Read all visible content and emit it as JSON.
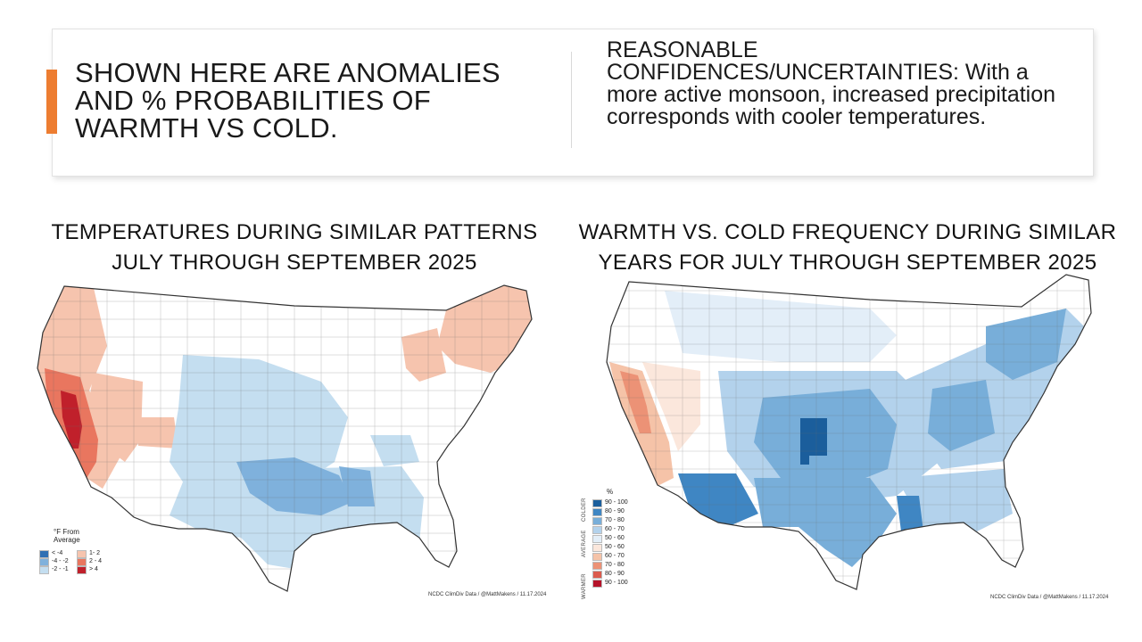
{
  "slide": {
    "headline": "SHOWN HERE ARE ANOMALIES AND % PROBABILITIES OF WARMTH VS COLD.",
    "confidence_label": "REASONABLE CONFIDENCES/UNCERTAINTIES:",
    "confidence_text": " With a more active monsoon, increased precipitation corresponds with cooler temperatures.",
    "accent_color": "#ed7d31"
  },
  "map_left": {
    "title_line1": "TEMPERATURES DURING SIMILAR PATTERNS",
    "title_line2": "JULY THROUGH SEPTEMBER 2025",
    "legend_title": "°F From Average",
    "legend_items": [
      {
        "label": "< -4",
        "color": "#2f6fb3"
      },
      {
        "label": "-4 - -2",
        "color": "#7fb1dc"
      },
      {
        "label": "-2 - -1",
        "color": "#c4def0"
      },
      {
        "label": "1- 2",
        "color": "#f6c4ae"
      },
      {
        "label": "2 - 4",
        "color": "#e9765f"
      },
      {
        "label": "> 4",
        "color": "#c0202b"
      }
    ],
    "credit": "NCDC ClimDiv Data / @MattMakens / 11.17.2024"
  },
  "map_right": {
    "title_line1": "WARMTH VS. COLD FREQUENCY DURING SIMILAR",
    "title_line2": "YEARS FOR JULY THROUGH SEPTEMBER 2025",
    "legend_title": "%",
    "legend_items": [
      {
        "label": "90 - 100",
        "color": "#1b5e9c"
      },
      {
        "label": "80 - 90",
        "color": "#3f86c3"
      },
      {
        "label": "70 - 80",
        "color": "#78aed9"
      },
      {
        "label": "60 - 70",
        "color": "#b3d2ec"
      },
      {
        "label": "50 - 60",
        "color": "#e3eef8"
      },
      {
        "label": "50 - 60",
        "color": "#fbe7dc"
      },
      {
        "label": "60 - 70",
        "color": "#f5c3a8"
      },
      {
        "label": "70 - 80",
        "color": "#ec9276"
      },
      {
        "label": "80 - 90",
        "color": "#db5b4d"
      },
      {
        "label": "90 - 100",
        "color": "#b5132a"
      }
    ],
    "side_labels": [
      "COLDER",
      "AVERAGE",
      "WARMER"
    ],
    "credit": "NCDC ClimDiv Data / @MattMakens / 11.17.2024"
  }
}
